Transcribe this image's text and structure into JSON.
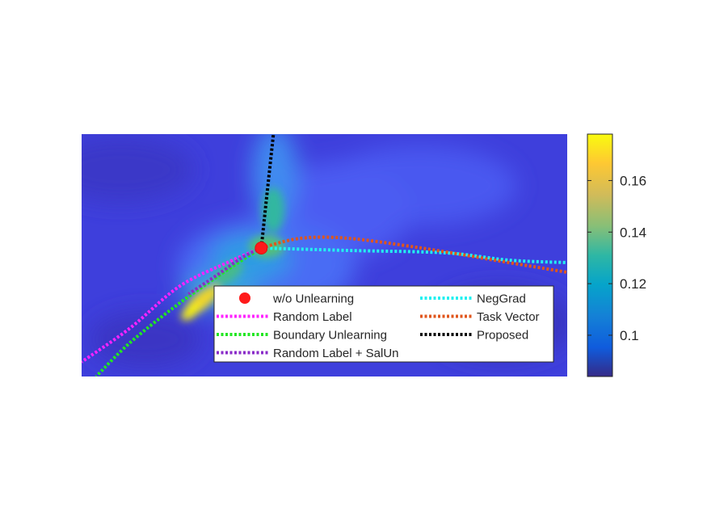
{
  "chart_data": {
    "type": "heatmap",
    "title": "",
    "xlabel": "",
    "ylabel": "",
    "colormap": "parula",
    "colorbar": {
      "range": [
        0.084,
        0.178
      ],
      "ticks": [
        0.1,
        0.12,
        0.14,
        0.16
      ],
      "tick_labels": [
        "0.1",
        "0.12",
        "0.14",
        "0.16"
      ]
    },
    "legend": {
      "placement": "lower-center",
      "columns": 2,
      "entries": [
        {
          "label": "w/o Unlearning",
          "color": "#ff1a1a",
          "style": "marker"
        },
        {
          "label": "Random Label",
          "color": "#ff22ff",
          "style": "dotted"
        },
        {
          "label": "Boundary Unlearning",
          "color": "#22e622",
          "style": "dotted"
        },
        {
          "label": "Random Label + SalUn",
          "color": "#8a2bc8",
          "style": "dotted"
        },
        {
          "label": "NegGrad",
          "color": "#22f0f0",
          "style": "dotted"
        },
        {
          "label": "Task Vector",
          "color": "#e0561c",
          "style": "dotted"
        },
        {
          "label": "Proposed",
          "color": "#000000",
          "style": "dotted"
        }
      ]
    },
    "marker": {
      "name": "w/o Unlearning",
      "x": 0.37,
      "y": 0.53
    },
    "paths": [
      {
        "name": "Proposed",
        "color": "#000000",
        "points": [
          [
            0.37,
            0.53
          ],
          [
            0.38,
            0.72
          ],
          [
            0.395,
            1.0
          ]
        ]
      },
      {
        "name": "NegGrad",
        "color": "#22f0f0",
        "points": [
          [
            0.37,
            0.53
          ],
          [
            0.55,
            0.52
          ],
          [
            0.75,
            0.51
          ],
          [
            0.88,
            0.48
          ],
          [
            1.0,
            0.47
          ]
        ]
      },
      {
        "name": "Task Vector",
        "color": "#e0561c",
        "points": [
          [
            0.37,
            0.53
          ],
          [
            0.45,
            0.57
          ],
          [
            0.55,
            0.57
          ],
          [
            0.7,
            0.53
          ],
          [
            0.85,
            0.48
          ],
          [
            1.0,
            0.43
          ]
        ]
      },
      {
        "name": "Random Label",
        "color": "#ff22ff",
        "points": [
          [
            0.37,
            0.53
          ],
          [
            0.3,
            0.47
          ],
          [
            0.2,
            0.37
          ],
          [
            0.1,
            0.2
          ],
          [
            0.0,
            0.06
          ]
        ]
      },
      {
        "name": "Boundary Unlearning",
        "color": "#22e622",
        "points": [
          [
            0.37,
            0.53
          ],
          [
            0.3,
            0.44
          ],
          [
            0.2,
            0.3
          ],
          [
            0.1,
            0.14
          ],
          [
            0.03,
            0.0
          ]
        ]
      },
      {
        "name": "Random Label + SalUn",
        "color": "#8a2bc8",
        "points": [
          [
            0.37,
            0.53
          ],
          [
            0.33,
            0.49
          ],
          [
            0.28,
            0.42
          ],
          [
            0.22,
            0.34
          ]
        ]
      }
    ]
  }
}
